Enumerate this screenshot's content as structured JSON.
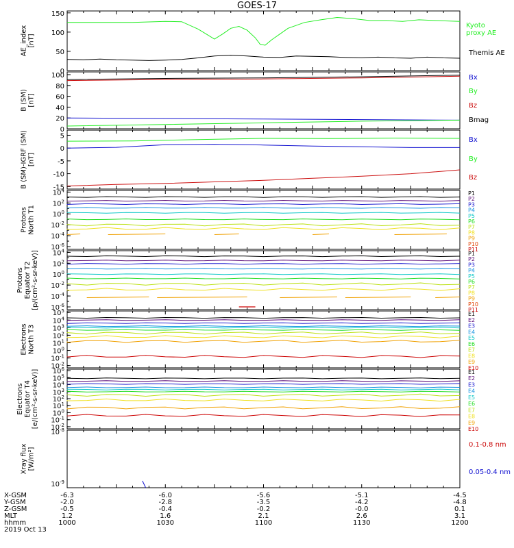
{
  "title": "GOES-17",
  "colors": {
    "black": "#000000",
    "green": "#22ee22",
    "red": "#cc1010",
    "blue": "#1010d0"
  },
  "chart_data": [
    {
      "id": "ae",
      "type": "line",
      "ylabel": "AE_index\n[nT]",
      "yticks": [
        "150",
        "100",
        "50",
        "0"
      ],
      "ylim": [
        0,
        155
      ],
      "x": [
        "1000",
        "1030",
        "1100",
        "1130",
        "1200"
      ],
      "series": [
        {
          "name": "Kyoto\nproxy AE",
          "color": "#22ee22",
          "points": [
            [
              0,
              125
            ],
            [
              20,
              125
            ],
            [
              40,
              125
            ],
            [
              60,
              128
            ],
            [
              70,
              127
            ],
            [
              80,
              108
            ],
            [
              85,
              95
            ],
            [
              90,
              82
            ],
            [
              95,
              95
            ],
            [
              100,
              110
            ],
            [
              105,
              115
            ],
            [
              110,
              105
            ],
            [
              115,
              85
            ],
            [
              118,
              68
            ],
            [
              121,
              66
            ],
            [
              125,
              80
            ],
            [
              130,
              95
            ],
            [
              135,
              110
            ],
            [
              145,
              125
            ],
            [
              155,
              132
            ],
            [
              165,
              138
            ],
            [
              175,
              135
            ],
            [
              185,
              130
            ],
            [
              195,
              130
            ],
            [
              205,
              128
            ],
            [
              215,
              132
            ],
            [
              225,
              130
            ],
            [
              240,
              128
            ]
          ]
        },
        {
          "name": "Themis AE",
          "color": "#000000",
          "points": [
            [
              0,
              29
            ],
            [
              10,
              28
            ],
            [
              20,
              30
            ],
            [
              30,
              28
            ],
            [
              40,
              27
            ],
            [
              50,
              26
            ],
            [
              60,
              27
            ],
            [
              70,
              29
            ],
            [
              80,
              33
            ],
            [
              90,
              38
            ],
            [
              100,
              40
            ],
            [
              110,
              38
            ],
            [
              120,
              35
            ],
            [
              130,
              34
            ],
            [
              140,
              38
            ],
            [
              150,
              37
            ],
            [
              160,
              36
            ],
            [
              170,
              34
            ],
            [
              180,
              33
            ],
            [
              190,
              35
            ],
            [
              200,
              33
            ],
            [
              210,
              32
            ],
            [
              220,
              35
            ],
            [
              230,
              33
            ],
            [
              240,
              32
            ]
          ]
        }
      ]
    },
    {
      "id": "bsm",
      "type": "line",
      "ylabel": "B (SM)\n[nT]",
      "yticks": [
        "100",
        "80",
        "60",
        "40",
        "20",
        "0"
      ],
      "ylim": [
        0,
        105
      ],
      "series": [
        {
          "name": "Bx",
          "color": "#1010d0",
          "points": [
            [
              0,
              20
            ],
            [
              60,
              19
            ],
            [
              120,
              18
            ],
            [
              180,
              17
            ],
            [
              240,
              16
            ]
          ]
        },
        {
          "name": "By",
          "color": "#22ee22",
          "points": [
            [
              0,
              5
            ],
            [
              60,
              8
            ],
            [
              120,
              11
            ],
            [
              180,
              14
            ],
            [
              240,
              16
            ]
          ]
        },
        {
          "name": "Bz",
          "color": "#cc1010",
          "points": [
            [
              0,
              89
            ],
            [
              60,
              91
            ],
            [
              120,
              92
            ],
            [
              180,
              94
            ],
            [
              240,
              97
            ]
          ]
        },
        {
          "name": "Bmag",
          "color": "#000000",
          "points": [
            [
              0,
              91
            ],
            [
              60,
              93
            ],
            [
              120,
              94
            ],
            [
              180,
              96
            ],
            [
              240,
              99
            ]
          ]
        }
      ]
    },
    {
      "id": "bdiff",
      "type": "line",
      "ylabel": "B (SM)-IGRF (SM)\n[nT]",
      "yticks": [
        "5",
        "0",
        "-5",
        "-10",
        "-15"
      ],
      "ylim": [
        -16,
        7
      ],
      "series": [
        {
          "name": "Bx",
          "color": "#1010d0",
          "points": [
            [
              0,
              0
            ],
            [
              30,
              0.3
            ],
            [
              60,
              1.3
            ],
            [
              90,
              1.5
            ],
            [
              120,
              1.2
            ],
            [
              150,
              0.8
            ],
            [
              180,
              0.5
            ],
            [
              210,
              0.2
            ],
            [
              240,
              0.2
            ]
          ]
        },
        {
          "name": "By",
          "color": "#22ee22",
          "points": [
            [
              0,
              2.7
            ],
            [
              40,
              2.8
            ],
            [
              80,
              3.3
            ],
            [
              120,
              3.8
            ],
            [
              160,
              3.7
            ],
            [
              200,
              3.9
            ],
            [
              240,
              3.8
            ]
          ]
        },
        {
          "name": "Bz",
          "color": "#cc1010",
          "points": [
            [
              0,
              -14.8
            ],
            [
              30,
              -14.2
            ],
            [
              60,
              -13.8
            ],
            [
              90,
              -13.2
            ],
            [
              120,
              -12.6
            ],
            [
              150,
              -11.8
            ],
            [
              180,
              -11.0
            ],
            [
              210,
              -10.0
            ],
            [
              240,
              -8.5
            ]
          ]
        }
      ]
    },
    {
      "id": "pn",
      "type": "line",
      "ylabel": "Protons\nNorth T1",
      "log": true,
      "yticks": [
        "10^4",
        "10^2",
        "10^0",
        "10^-2",
        "10^-4",
        "10^-6"
      ],
      "ylim_exp": [
        -6.5,
        4.3
      ],
      "channels": [
        {
          "name": "P1",
          "color": "#000000",
          "value_exp": 3.1
        },
        {
          "name": "P2",
          "color": "#5a0a7a",
          "value_exp": 2.4
        },
        {
          "name": "P3",
          "color": "#2020d0",
          "value_exp": 1.8
        },
        {
          "name": "P4",
          "color": "#1090e0",
          "value_exp": 1.1
        },
        {
          "name": "P5",
          "color": "#10c8c8",
          "value_exp": 0.2
        },
        {
          "name": "P6",
          "color": "#22dd22",
          "value_exp": -1.0
        },
        {
          "name": "P7",
          "color": "#bbe010",
          "value_exp": -2.0
        },
        {
          "name": "P8",
          "color": "#f0e020",
          "value_exp": -2.7
        },
        {
          "name": "P9",
          "color": "#f0a000",
          "value_exp": -3.8
        },
        {
          "name": "P10",
          "color": "#e04000",
          "value_exp": null
        },
        {
          "name": "P11",
          "color": "#cc0000",
          "value_exp": null
        }
      ]
    },
    {
      "id": "pe",
      "type": "line",
      "ylabel": "Protons\nEquator T2\n[p/(cm²-s-sr-keV)]",
      "log": true,
      "yticks": [
        "10^4",
        "10^2",
        "10^0",
        "10^-2",
        "10^-4",
        "10^-6"
      ],
      "ylim_exp": [
        -6.5,
        4.3
      ],
      "channels": [
        {
          "name": "P1",
          "color": "#000000",
          "value_exp": 3.3
        },
        {
          "name": "P2",
          "color": "#5a0a7a",
          "value_exp": 2.5
        },
        {
          "name": "P3",
          "color": "#2020d0",
          "value_exp": 1.9
        },
        {
          "name": "P4",
          "color": "#1090e0",
          "value_exp": 1.0
        },
        {
          "name": "P5",
          "color": "#10c8c8",
          "value_exp": 0.0
        },
        {
          "name": "P6",
          "color": "#22dd22",
          "value_exp": -0.8
        },
        {
          "name": "P7",
          "color": "#bbe010",
          "value_exp": -1.8
        },
        {
          "name": "P8",
          "color": "#f0e020",
          "value_exp": -2.8
        },
        {
          "name": "P9",
          "color": "#f0a000",
          "value_exp": -4.3
        },
        {
          "name": "P10",
          "color": "#e04000",
          "value_exp": null
        },
        {
          "name": "P11",
          "color": "#cc0000",
          "value_exp": -6.0
        }
      ]
    },
    {
      "id": "en",
      "type": "line",
      "ylabel": "Electrons\nNorth T3",
      "log": true,
      "yticks": [
        "10^5",
        "10^4",
        "10^3",
        "10^2",
        "10^1",
        "10^0",
        "10^-1",
        "10^-2"
      ],
      "ylim_exp": [
        -2.3,
        5.2
      ],
      "channels": [
        {
          "name": "E1",
          "color": "#000000",
          "value_exp": 4.3
        },
        {
          "name": "E2",
          "color": "#5a0a7a",
          "value_exp": 4.0
        },
        {
          "name": "E3",
          "color": "#2020d0",
          "value_exp": 3.6
        },
        {
          "name": "E4",
          "color": "#1090e0",
          "value_exp": 3.2
        },
        {
          "name": "E5",
          "color": "#10c8c8",
          "value_exp": 3.0
        },
        {
          "name": "E6",
          "color": "#22dd22",
          "value_exp": 2.7
        },
        {
          "name": "E7",
          "color": "#bbe010",
          "value_exp": 2.3
        },
        {
          "name": "E8",
          "color": "#f0e020",
          "value_exp": 1.8
        },
        {
          "name": "E9",
          "color": "#f0a000",
          "value_exp": 1.2
        },
        {
          "name": "E10",
          "color": "#cc0000",
          "value_exp": -0.8
        }
      ]
    },
    {
      "id": "ee",
      "type": "line",
      "ylabel": "Electrons\nEquator T4\n[e/(cm²-s-sr-keV)]",
      "log": true,
      "yticks": [
        "10^6",
        "10^5",
        "10^4",
        "10^3",
        "10^2",
        "10^1",
        "10^0",
        "10^-1",
        "10^-2"
      ],
      "ylim_exp": [
        -2.3,
        6.2
      ],
      "channels": [
        {
          "name": "E1",
          "color": "#000000",
          "value_exp": 4.9
        },
        {
          "name": "E2",
          "color": "#5a0a7a",
          "value_exp": 4.5
        },
        {
          "name": "E3",
          "color": "#2020d0",
          "value_exp": 4.1
        },
        {
          "name": "E4",
          "color": "#1090e0",
          "value_exp": 3.6
        },
        {
          "name": "E5",
          "color": "#10c8c8",
          "value_exp": 3.3
        },
        {
          "name": "E6",
          "color": "#22dd22",
          "value_exp": 3.0
        },
        {
          "name": "E7",
          "color": "#bbe010",
          "value_exp": 2.5
        },
        {
          "name": "E8",
          "color": "#f0e020",
          "value_exp": 1.8
        },
        {
          "name": "E9",
          "color": "#f0a000",
          "value_exp": 0.7
        },
        {
          "name": "E10",
          "color": "#cc0000",
          "value_exp": -0.4
        }
      ]
    },
    {
      "id": "xray",
      "type": "line",
      "ylabel": "Xray flux\n[W/m²]",
      "log": true,
      "yticks": [
        "10^-8",
        "10^-9"
      ],
      "series": [
        {
          "name": "0.1-0.8 nm",
          "color": "#cc1010"
        },
        {
          "name": "0.05-0.4 nm",
          "color": "#1010d0"
        }
      ]
    }
  ],
  "footer": {
    "labels": [
      "X-GSM",
      "Y-GSM",
      "Z-GSM",
      "MLT",
      "hhmm",
      "2019 Oct 13"
    ],
    "columns": [
      [
        "-6.3",
        "-2.0",
        "-0.5",
        "1.2",
        "1000"
      ],
      [
        "-6.0",
        "-2.8",
        "-0.4",
        "1.6",
        "1030"
      ],
      [
        "-5.6",
        "-3.5",
        "-0.2",
        "2.1",
        "1100"
      ],
      [
        "-5.1",
        "-4.2",
        "-0.0",
        "2.6",
        "1130"
      ],
      [
        "-4.5",
        "-4.8",
        "0.1",
        "3.1",
        "1200"
      ]
    ]
  }
}
